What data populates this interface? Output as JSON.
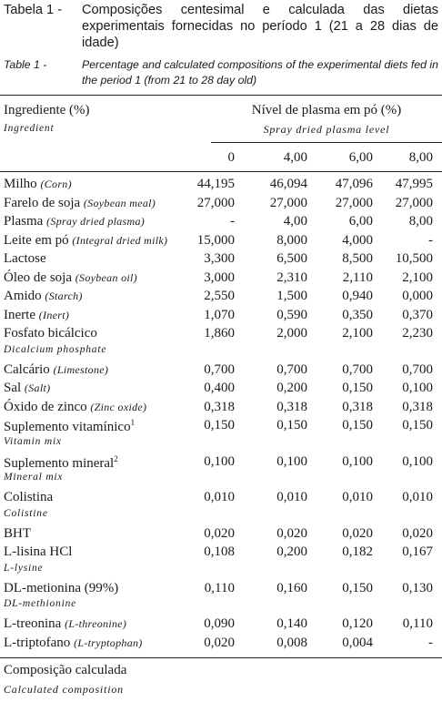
{
  "caption": {
    "pt_label": "Tabela 1 -",
    "pt_text": "Composições centesimal e calculada das dietas experimentais fornecidas no período 1 (21 a 28 dias de idade)",
    "en_label": "Table 1 -",
    "en_text": "Percentage and calculated compositions of the experimental diets fed in the period 1 (from 21 to 28 day old)"
  },
  "header": {
    "ingredient_pt": "Ingrediente (%)",
    "ingredient_en": "Ingredient",
    "plasma_pt": "Nível de plasma em pó (%)",
    "plasma_en": "Spray dried plasma level",
    "levels": [
      "0",
      "4,00",
      "6,00",
      "8,00"
    ]
  },
  "rows": [
    {
      "name": "Milho",
      "en": "(Corn)",
      "values": [
        "44,195",
        "46,094",
        "47,096",
        "47,995"
      ]
    },
    {
      "name": "Farelo de soja",
      "en": "(Soybean meal)",
      "values": [
        "27,000",
        "27,000",
        "27,000",
        "27,000"
      ]
    },
    {
      "name": "Plasma",
      "en": "(Spray dried plasma)",
      "values": [
        "-",
        "4,00",
        "6,00",
        "8,00"
      ]
    },
    {
      "name": "Leite em pó",
      "en": "(Integral dried milk)",
      "values": [
        "15,000",
        "8,000",
        "4,000",
        "-"
      ]
    },
    {
      "name": "Lactose",
      "en": "",
      "values": [
        "3,300",
        "6,500",
        "8,500",
        "10,500"
      ]
    },
    {
      "name": "Óleo de soja",
      "en": "(Soybean oil)",
      "values": [
        "3,000",
        "2,310",
        "2,110",
        "2,100"
      ]
    },
    {
      "name": "Amido",
      "en": "(Starch)",
      "values": [
        "2,550",
        "1,500",
        "0,940",
        "0,000"
      ]
    },
    {
      "name": "Inerte",
      "en": "(Inert)",
      "values": [
        "1,070",
        "0,590",
        "0,350",
        "0,370"
      ]
    },
    {
      "name": "Fosfato bicálcico",
      "en": "",
      "sub": "Dicalcium phosphate",
      "values": [
        "1,860",
        "2,000",
        "2,100",
        "2,230"
      ]
    },
    {
      "name": "Calcário",
      "en": "(Limestone)",
      "values": [
        "0,700",
        "0,700",
        "0,700",
        "0,700"
      ]
    },
    {
      "name": "Sal",
      "en": "(Salt)",
      "values": [
        "0,400",
        "0,200",
        "0,150",
        "0,100"
      ]
    },
    {
      "name": "Óxido de zinco",
      "en": "(Zinc oxide)",
      "values": [
        "0,318",
        "0,318",
        "0,318",
        "0,318"
      ]
    },
    {
      "name": "Suplemento vitamínico",
      "sup": "1",
      "en": "",
      "sub": "Vitamin mix",
      "values": [
        "0,150",
        "0,150",
        "0,150",
        "0,150"
      ]
    },
    {
      "name": "Suplemento mineral",
      "sup": "2",
      "en": "",
      "sub": "Mineral mix",
      "values": [
        "0,100",
        "0,100",
        "0,100",
        "0,100"
      ]
    },
    {
      "name": "Colistina",
      "en": "",
      "sub": "Colistine",
      "values": [
        "0,010",
        "0,010",
        "0,010",
        "0,010"
      ]
    },
    {
      "name": "BHT",
      "en": "",
      "values": [
        "0,020",
        "0,020",
        "0,020",
        "0,020"
      ]
    },
    {
      "name": "L-lisina HCl",
      "en": "",
      "sub": "L-lysine",
      "values": [
        "0,108",
        "0,200",
        "0,182",
        "0,167"
      ]
    },
    {
      "name": "DL-metionina (99%)",
      "en": "",
      "sub": "DL-methionine",
      "values": [
        "0,110",
        "0,160",
        "0,150",
        "0,130"
      ]
    },
    {
      "name": "L-treonina",
      "en": "(L-threonine)",
      "values": [
        "0,090",
        "0,140",
        "0,120",
        "0,110"
      ]
    },
    {
      "name": "L-triptofano",
      "en": "(L-tryptophan)",
      "values": [
        "0,020",
        "0,008",
        "0,004",
        "-"
      ]
    }
  ],
  "footer": {
    "composition_pt": "Composição calculada",
    "composition_en": "Calculated composition"
  }
}
